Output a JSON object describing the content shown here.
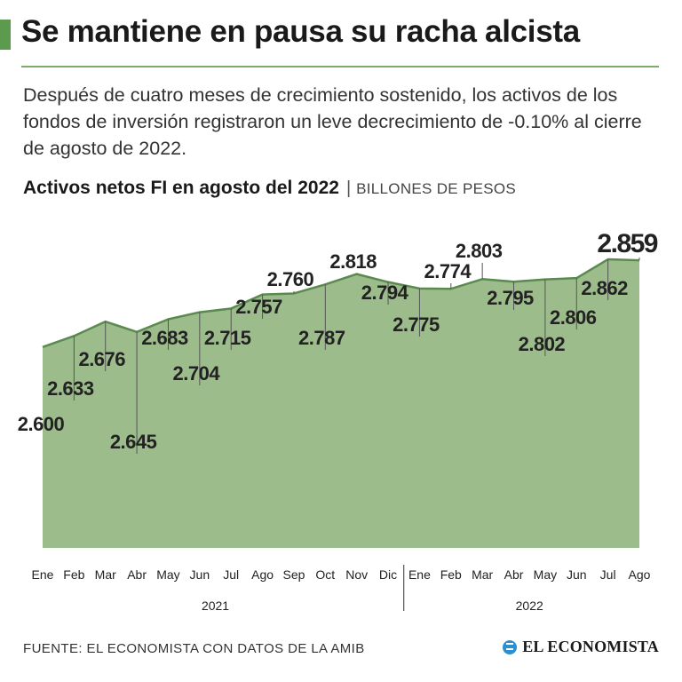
{
  "header": {
    "title": "Se mantiene en pausa su racha alcista",
    "lede": "Después de cuatro meses de crecimiento sostenido, los activos de los fondos de inversión registraron un leve decrecimiento de -0.10% al cierre de agosto de 2022.",
    "chart_title": "Activos netos FI en agosto del 2022",
    "separator": "|",
    "units": "BILLONES DE PESOS"
  },
  "colors": {
    "accent": "#5c9a4e",
    "rule": "#7cab6e",
    "area_fill": "#9dbc8c",
    "area_line": "#5a8a4f",
    "leader": "#555555"
  },
  "chart_data": {
    "type": "area",
    "title": "Activos netos FI en agosto del 2022",
    "ylabel": "Billones de pesos",
    "xlabel": "",
    "categories": [
      "Ene",
      "Feb",
      "Mar",
      "Abr",
      "May",
      "Jun",
      "Jul",
      "Ago",
      "Sep",
      "Oct",
      "Nov",
      "Dic",
      "Ene",
      "Feb",
      "Mar",
      "Abr",
      "May",
      "Jun",
      "Jul",
      "Ago"
    ],
    "values": [
      2.6,
      2.633,
      2.676,
      2.645,
      2.683,
      2.704,
      2.715,
      2.757,
      2.76,
      2.787,
      2.818,
      2.794,
      2.775,
      2.774,
      2.803,
      2.795,
      2.802,
      2.806,
      2.862,
      2.859
    ],
    "labels": [
      "2.600",
      "2.633",
      "2.676",
      "2.645",
      "2.683",
      "2.704",
      "2.715",
      "2.757",
      "2.760",
      "2.787",
      "2.818",
      "2.794",
      "2.775",
      "2.774",
      "2.803",
      "2.795",
      "2.802",
      "2.806",
      "2.862",
      "2.859"
    ],
    "highlight_index": 19,
    "years": [
      {
        "label": "2021",
        "start": 0,
        "end": 11
      },
      {
        "label": "2022",
        "start": 12,
        "end": 19
      }
    ],
    "ylim": [
      2.0,
      3.0
    ],
    "grid": false
  },
  "footer": {
    "source": "FUENTE: EL ECONOMISTA CON DATOS DE LA AMIB",
    "brand": "EL ECONOMISTA"
  }
}
